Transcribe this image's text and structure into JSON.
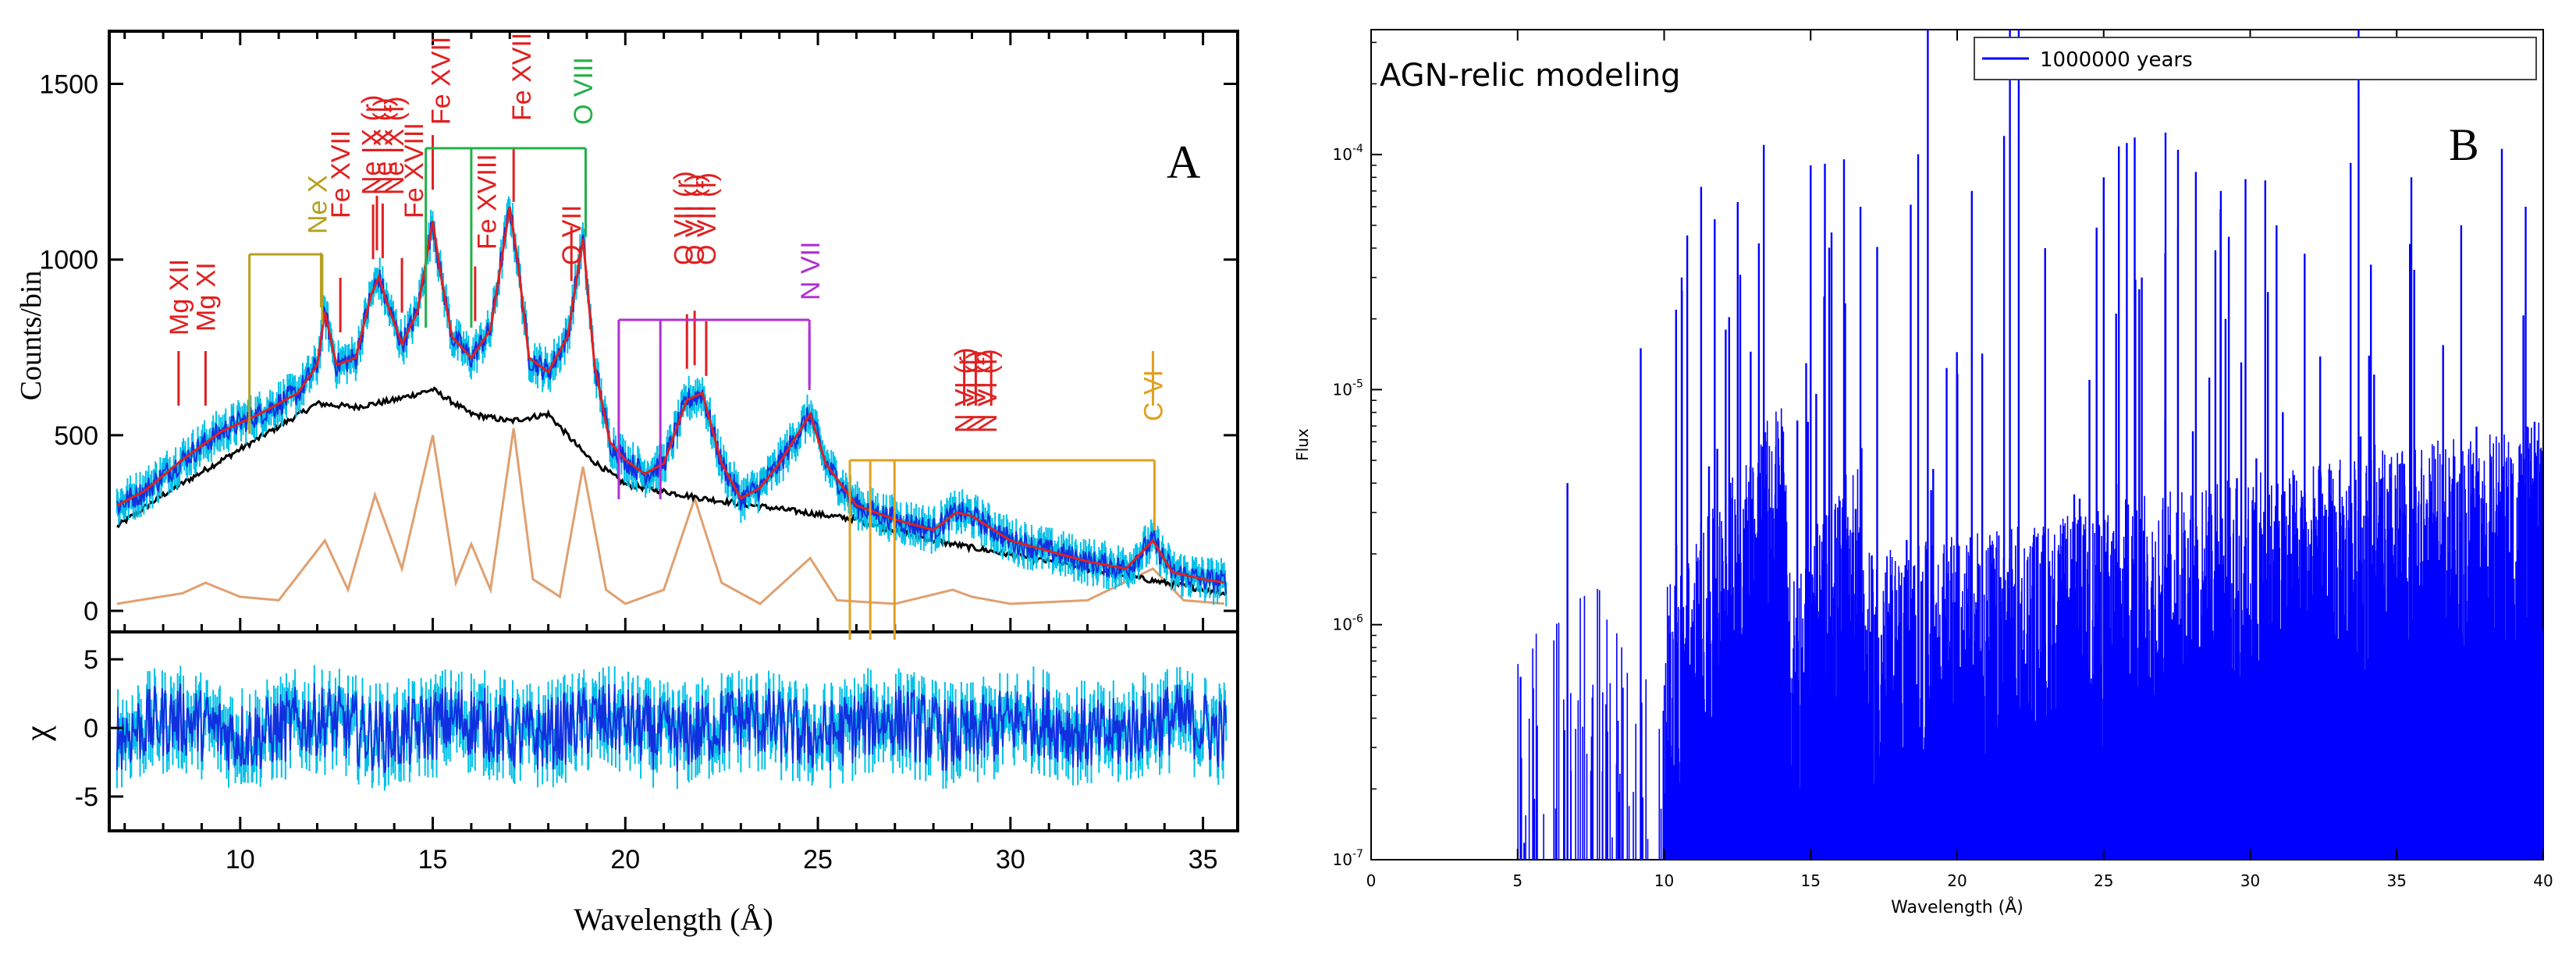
{
  "panel_letters": {
    "a": "A",
    "b": "B"
  },
  "chart_data": [
    {
      "type": "line",
      "panel": "A",
      "title": "",
      "xlabel": "Wavelength (Å)",
      "ylabel": "Counts/bin",
      "xlim": [
        6.6,
        35.9
      ],
      "ylim": [
        -60,
        1650
      ],
      "xticks": [
        10,
        15,
        20,
        25,
        30,
        35
      ],
      "yticks": [
        0,
        500,
        1000,
        1500
      ],
      "colors": {
        "data": "#1030e0",
        "data_err": "#00c0e8",
        "model": "#e02020",
        "continuum": "#000000",
        "lines": "#e0a070"
      },
      "series": [
        {
          "name": "data",
          "x": [
            6.8,
            7.5,
            8.5,
            9.5,
            10.5,
            11.5,
            12.0,
            12.2,
            12.5,
            13.0,
            13.4,
            13.6,
            13.8,
            14.2,
            14.6,
            15.0,
            15.2,
            15.5,
            16.0,
            16.5,
            17.0,
            17.2,
            17.5,
            18.0,
            18.5,
            18.9,
            19.2,
            19.6,
            20.0,
            20.5,
            21.0,
            21.6,
            22.0,
            22.5,
            23.0,
            23.5,
            24.0,
            24.8,
            25.2,
            26.0,
            27.0,
            28.0,
            28.6,
            29.0,
            30.0,
            31.0,
            32.0,
            33.0,
            33.7,
            34.2,
            35.0,
            35.6
          ],
          "values": [
            300,
            340,
            430,
            510,
            560,
            620,
            700,
            850,
            700,
            720,
            900,
            950,
            880,
            760,
            850,
            1110,
            960,
            780,
            720,
            800,
            1150,
            1000,
            720,
            680,
            780,
            1060,
            700,
            480,
            430,
            390,
            420,
            600,
            620,
            420,
            320,
            350,
            420,
            560,
            420,
            300,
            260,
            230,
            280,
            270,
            200,
            170,
            140,
            120,
            200,
            110,
            90,
            80
          ]
        },
        {
          "name": "continuum",
          "x": [
            6.8,
            8.0,
            10.0,
            12.0,
            13.0,
            14.0,
            15.0,
            16.0,
            17.0,
            18.0,
            19.0,
            20.0,
            22.0,
            24.0,
            26.0,
            28.0,
            30.0,
            32.0,
            34.0,
            35.6
          ],
          "values": [
            240,
            330,
            460,
            590,
            580,
            600,
            630,
            560,
            540,
            560,
            440,
            360,
            320,
            290,
            260,
            200,
            160,
            120,
            80,
            50
          ]
        },
        {
          "name": "line model",
          "x": [
            6.8,
            8.5,
            9.1,
            10.0,
            11.0,
            12.2,
            12.8,
            13.5,
            14.2,
            15.0,
            15.6,
            16.0,
            16.5,
            17.1,
            17.6,
            18.3,
            18.9,
            19.5,
            20.0,
            21.0,
            21.8,
            22.5,
            23.5,
            24.8,
            25.5,
            27.0,
            28.5,
            29.0,
            30.0,
            32.0,
            33.7,
            34.5,
            35.6
          ],
          "values": [
            20,
            50,
            80,
            40,
            30,
            200,
            60,
            330,
            120,
            500,
            80,
            190,
            60,
            520,
            90,
            40,
            410,
            60,
            20,
            60,
            320,
            80,
            20,
            150,
            30,
            20,
            60,
            40,
            20,
            30,
            120,
            30,
            20
          ]
        }
      ]
    },
    {
      "type": "line",
      "panel": "A-residuals",
      "ylabel": "χ",
      "xlim": [
        6.6,
        35.9
      ],
      "ylim": [
        -7.5,
        7
      ],
      "yticks": [
        -5,
        0,
        5
      ],
      "xticks": [
        10,
        15,
        20,
        25,
        30,
        35
      ],
      "xticklabels": [
        "10",
        "15",
        "20",
        "25",
        "30",
        "35"
      ],
      "series": [
        {
          "name": "residuals",
          "x": [
            6.8,
            10,
            15,
            20,
            25,
            30,
            35.6
          ],
          "values": [
            0,
            0.5,
            1,
            0,
            -1,
            0,
            0.5
          ]
        }
      ]
    },
    {
      "type": "line",
      "panel": "B",
      "title": "AGN-relic modeling",
      "xlabel": "Wavelength (Å)",
      "ylabel": "Flux",
      "yscale": "log",
      "xlim": [
        0,
        40
      ],
      "ylim": [
        1e-07,
        0.00034
      ],
      "xticks": [
        0,
        5,
        10,
        15,
        20,
        25,
        30,
        35,
        40
      ],
      "yticklabels": [
        "10",
        "10",
        "10",
        "10"
      ],
      "ytick_exponents": [
        "-7",
        "-6",
        "-5",
        "-4"
      ],
      "legend": {
        "location": "top-right",
        "entries": [
          "1000000 years"
        ]
      },
      "color": "#0000ff",
      "series": [
        {
          "name": "1000000 years",
          "edges": [
            [
              5.0,
              0
            ],
            [
              10.0,
              0
            ],
            [
              14.2,
              1
            ],
            [
              16.8,
              1
            ],
            [
              25.3,
              2
            ]
          ],
          "x": [
            5.1,
            6.7,
            9.2,
            10.6,
            12.1,
            13.4,
            15.0,
            16.7,
            19.0,
            20.5,
            21.6,
            21.8,
            22.1,
            23.0,
            25.0,
            26.3,
            29.0,
            30.9,
            33.7,
            35.5,
            37.2,
            39.4
          ],
          "values": [
            6e-07,
            4e-06,
            1.5e-05,
            3e-05,
            1.8e-05,
            0.00011,
            9e-05,
            6e-05,
            0.00035,
            7e-05,
            0.00012,
            0.00034,
            0.00034,
            4e-05,
            8e-05,
            3e-05,
            7e-05,
            5e-05,
            0.00034,
            8e-05,
            5e-05,
            6e-05
          ]
        }
      ]
    }
  ],
  "annotations_a": [
    {
      "text": "Mg XII",
      "color": "#e02020",
      "x": 8.4
    },
    {
      "text": "Mg XI",
      "color": "#e02020",
      "x": 9.1
    },
    {
      "text": "Ne X",
      "color": "#b5a020",
      "x": 12.1
    },
    {
      "text": "Fe XVII",
      "color": "#e02020",
      "x": 12.6
    },
    {
      "text": "Ne IX (r)",
      "color": "#e02020",
      "x": 13.45
    },
    {
      "text": "Ne IX (i)",
      "color": "#e02020",
      "x": 13.55
    },
    {
      "text": "Ne IX (f)",
      "color": "#e02020",
      "x": 13.7
    },
    {
      "text": "Fe XVIII",
      "color": "#e02020",
      "x": 14.2
    },
    {
      "text": "Fe XVII",
      "color": "#e02020",
      "x": 15.0
    },
    {
      "text": "Fe XVIII",
      "color": "#e02020",
      "x": 16.1
    },
    {
      "text": "Fe XVII",
      "color": "#e02020",
      "x": 17.1
    },
    {
      "text": "O VIII",
      "color": "#22b04a",
      "x": 18.97
    },
    {
      "text": "O VII",
      "color": "#e02020",
      "x": 18.6
    },
    {
      "text": "O VII (r)",
      "color": "#e02020",
      "x": 21.6
    },
    {
      "text": "O VII (i)",
      "color": "#e02020",
      "x": 21.8
    },
    {
      "text": "O VII (f)",
      "color": "#e02020",
      "x": 22.1
    },
    {
      "text": "N VII",
      "color": "#b030d0",
      "x": 24.78
    },
    {
      "text": "N VI (r)",
      "color": "#e02020",
      "x": 28.8
    },
    {
      "text": "N VI (i)",
      "color": "#e02020",
      "x": 29.1
    },
    {
      "text": "N VI (f)",
      "color": "#e02020",
      "x": 29.5
    },
    {
      "text": "C VI",
      "color": "#e0a020",
      "x": 33.7
    }
  ]
}
